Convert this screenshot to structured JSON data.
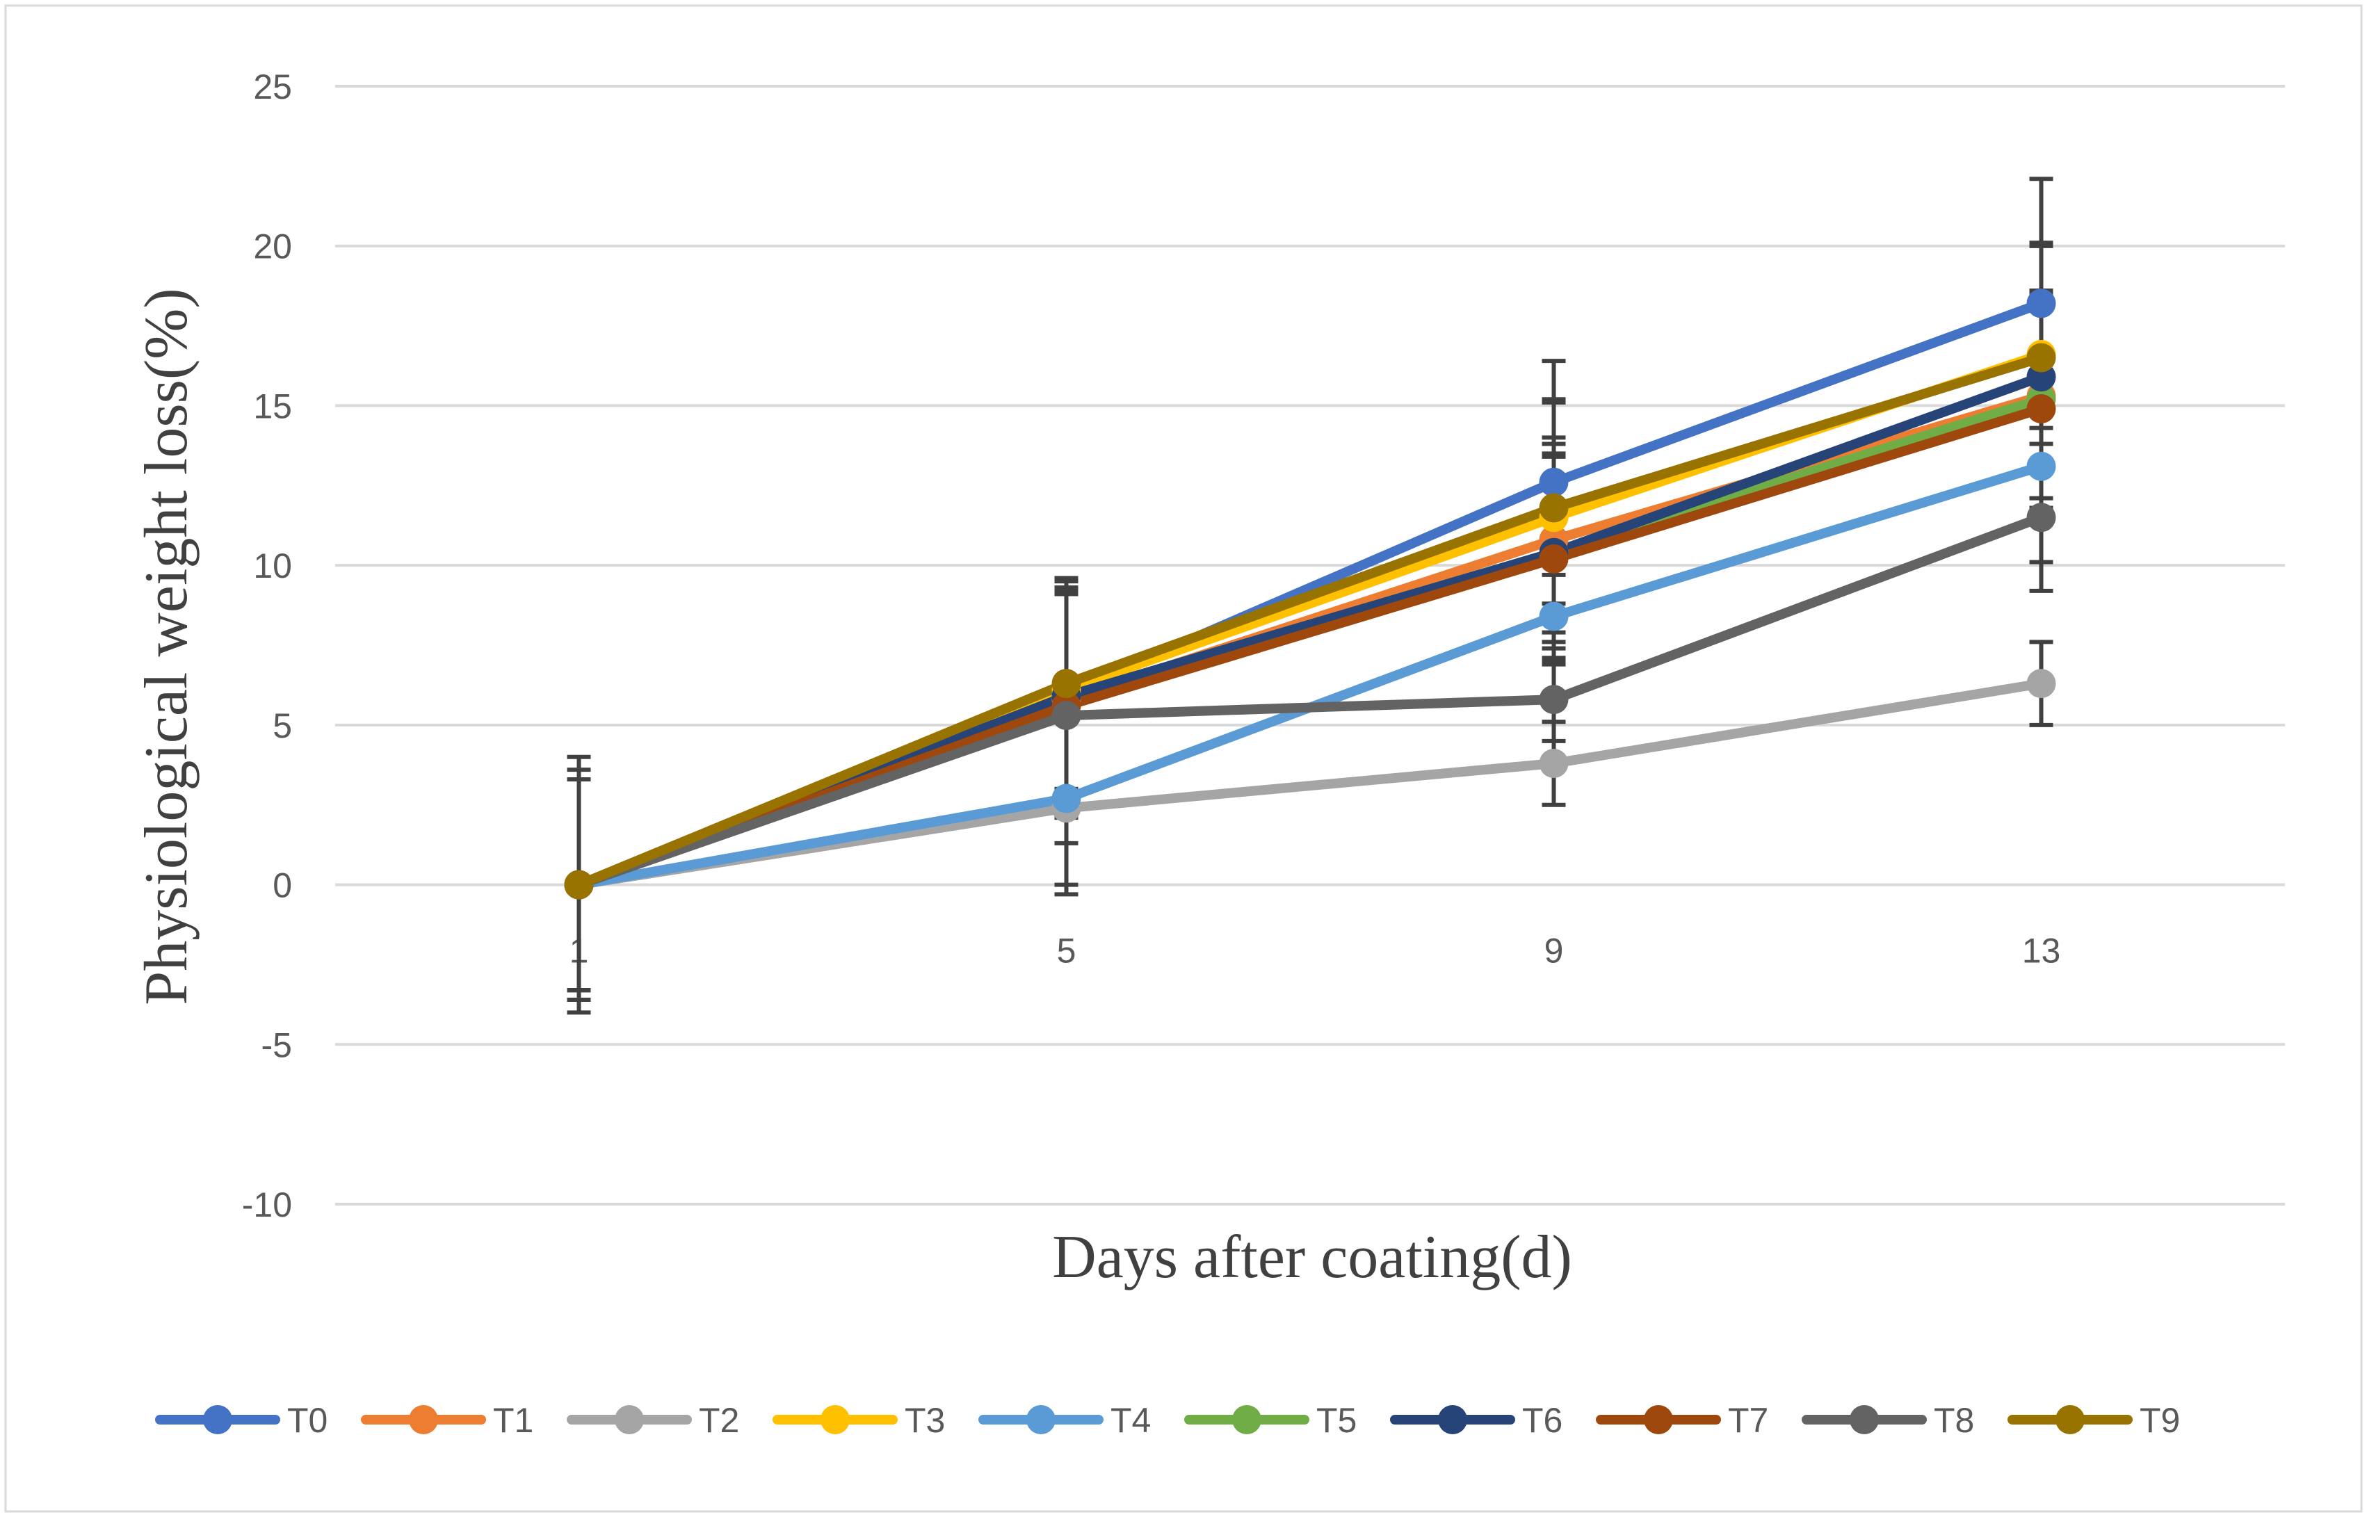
{
  "chart_data": {
    "type": "line",
    "xlabel": "Days after coating(d)",
    "ylabel": "Physiological weight loss(%)",
    "categories": [
      "1",
      "5",
      "9",
      "13"
    ],
    "ylim": [
      -10,
      25
    ],
    "yticks": [
      25,
      20,
      15,
      10,
      5,
      0,
      -5,
      -10
    ],
    "grid": true,
    "legend_position": "bottom",
    "series": [
      {
        "name": "T0",
        "color": "#4472c4",
        "values": [
          0,
          6.0,
          12.6,
          18.2
        ],
        "errors": [
          3.3,
          3.5,
          3.8,
          3.9
        ]
      },
      {
        "name": "T1",
        "color": "#ed7d31",
        "values": [
          0,
          5.8,
          10.8,
          15.3
        ],
        "errors": [
          3.3,
          3.4,
          3.2,
          3.2
        ]
      },
      {
        "name": "T2",
        "color": "#a5a5a5",
        "values": [
          0,
          2.4,
          3.8,
          6.3
        ],
        "errors": [
          3.3,
          2.7,
          1.3,
          1.3
        ]
      },
      {
        "name": "T3",
        "color": "#ffc000",
        "values": [
          0,
          6.1,
          11.5,
          16.6
        ],
        "errors": [
          3.6,
          3.5,
          3.6,
          3.4
        ]
      },
      {
        "name": "T4",
        "color": "#5b9bd5",
        "values": [
          0,
          2.7,
          8.4,
          13.1
        ],
        "errors": [
          3.3,
          2.7,
          1.3,
          3.0
        ]
      },
      {
        "name": "T5",
        "color": "#70ad47",
        "values": [
          0,
          5.9,
          10.4,
          15.2
        ],
        "errors": [
          3.3,
          3.4,
          3.0,
          3.4
        ]
      },
      {
        "name": "T6",
        "color": "#264478",
        "values": [
          0,
          5.9,
          10.4,
          15.9
        ],
        "errors": [
          3.3,
          3.4,
          3.4,
          4.1
        ]
      },
      {
        "name": "T7",
        "color": "#9e480e",
        "values": [
          0,
          5.6,
          10.2,
          14.9
        ],
        "errors": [
          3.3,
          3.5,
          3.3,
          3.4
        ]
      },
      {
        "name": "T8",
        "color": "#636363",
        "values": [
          0,
          5.3,
          5.8,
          11.5
        ],
        "errors": [
          3.3,
          4.0,
          1.3,
          2.3
        ]
      },
      {
        "name": "T9",
        "color": "#997300",
        "values": [
          0,
          6.3,
          11.8,
          16.5
        ],
        "errors": [
          4.0,
          3.3,
          3.4,
          3.6
        ]
      }
    ]
  }
}
